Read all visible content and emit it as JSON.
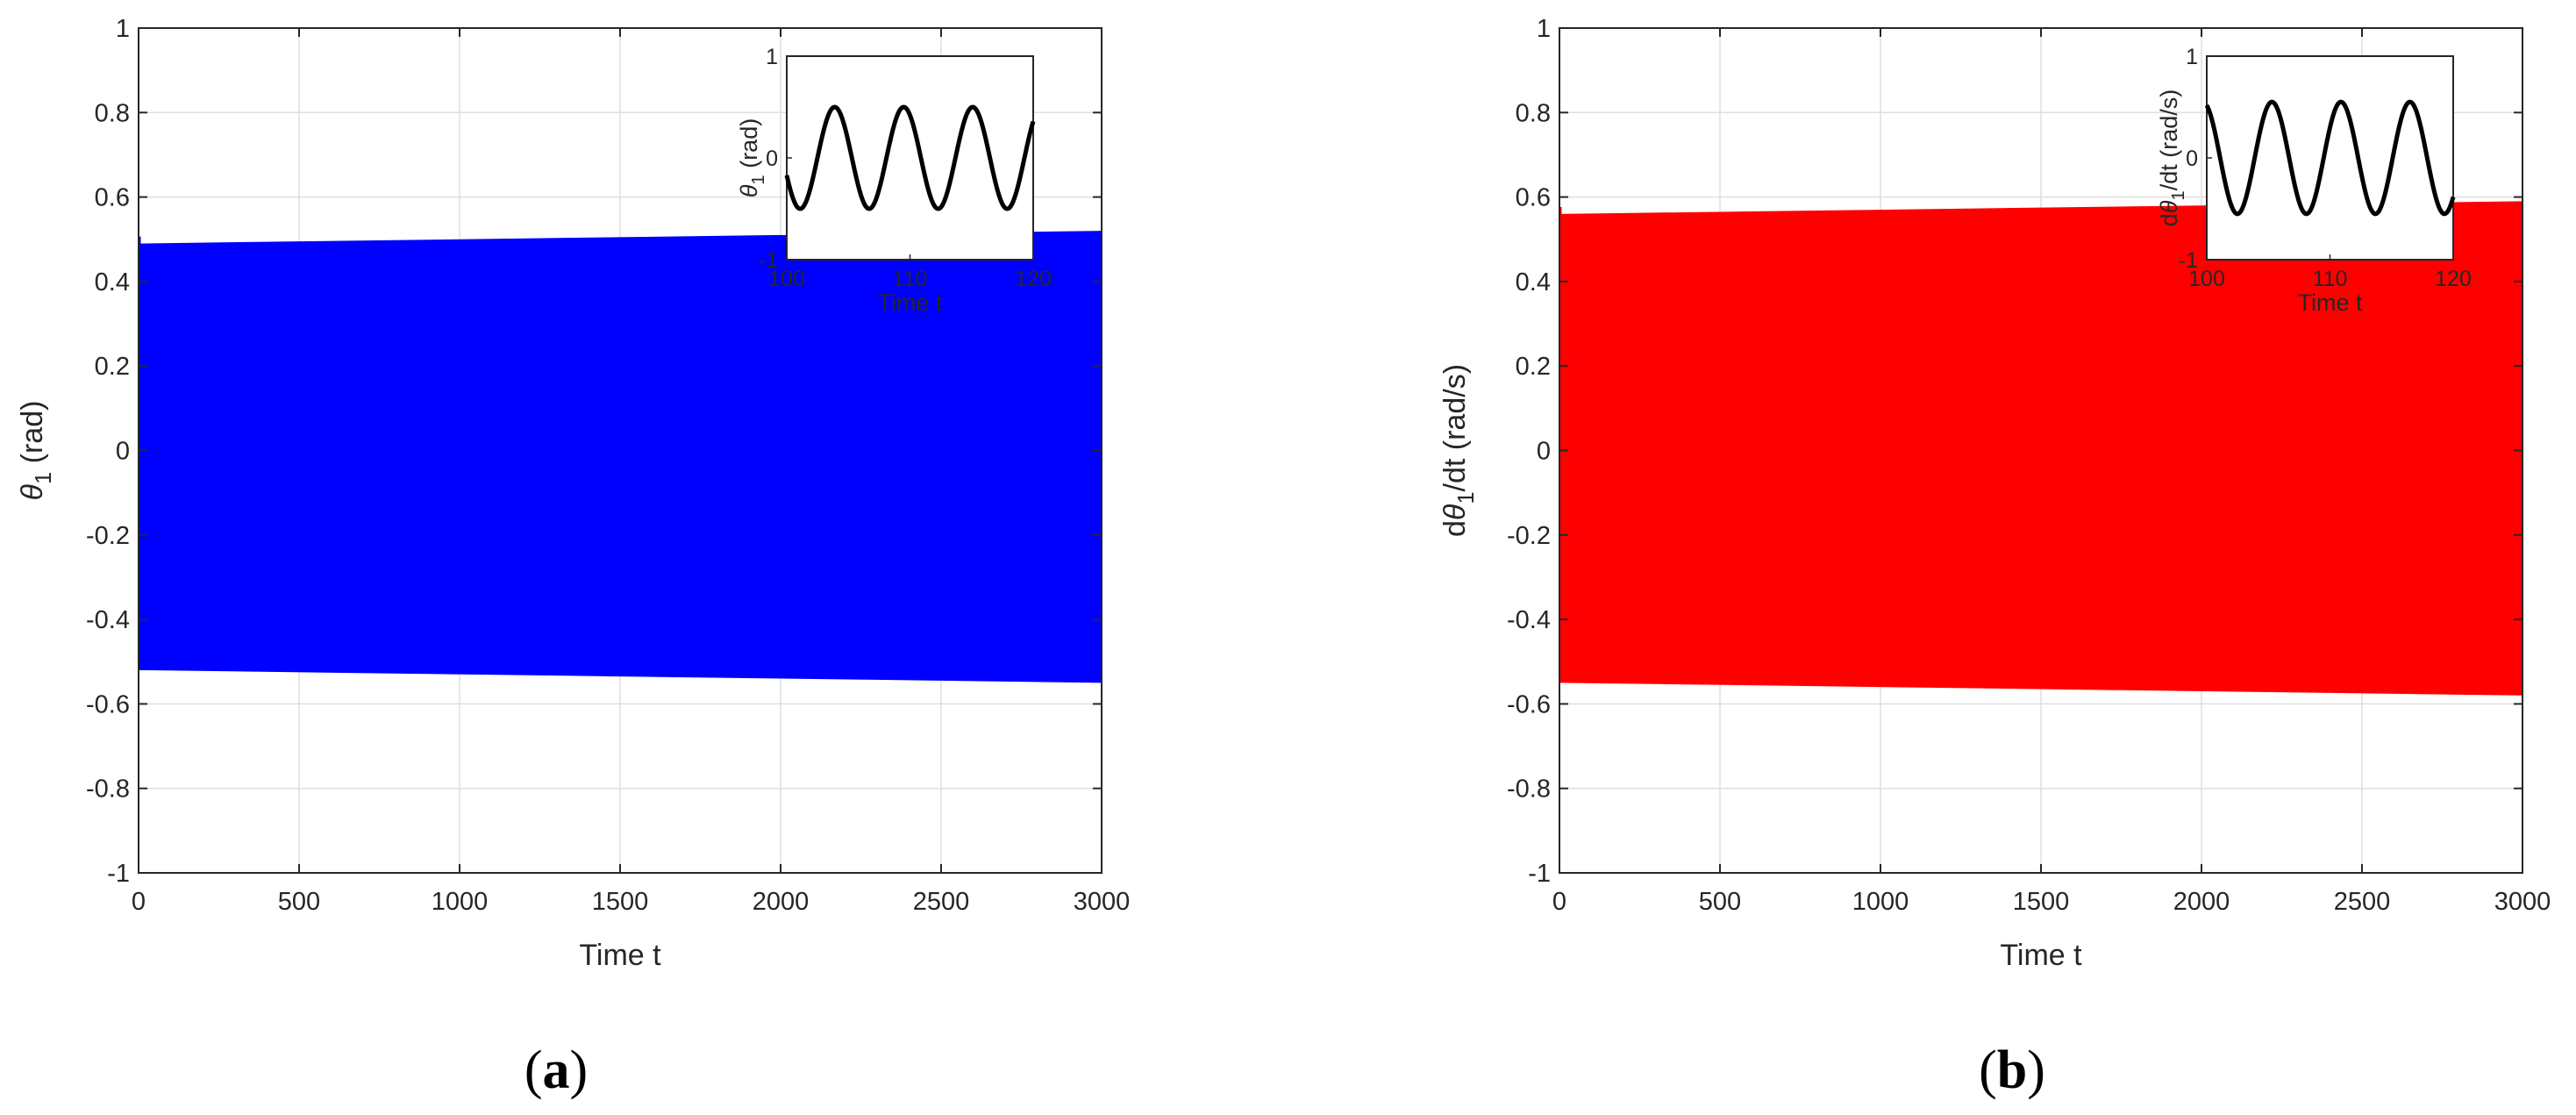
{
  "chart_data": [
    {
      "type": "area",
      "panel_label": "(a)",
      "xlabel": "Time t",
      "ylabel": "θ1 (rad)",
      "ylabel_parts": {
        "symbol": "θ",
        "sub": "1",
        "rest": " (rad)"
      },
      "xlim": [
        0,
        3000
      ],
      "ylim": [
        -1,
        1
      ],
      "xticks": [
        "0",
        "500",
        "1000",
        "1500",
        "2000",
        "2500",
        "3000"
      ],
      "yticks": [
        "-1",
        "-0.8",
        "-0.6",
        "-0.4",
        "-0.2",
        "0",
        "0.2",
        "0.4",
        "0.6",
        "0.8",
        "1"
      ],
      "grid": true,
      "color": "#0000ff",
      "description_series": {
        "x": [
          0,
          3000
        ],
        "upper_envelope": [
          0.49,
          0.52
        ],
        "lower_envelope": [
          -0.52,
          -0.55
        ]
      },
      "inset": {
        "type": "line",
        "xlabel": "Time t",
        "ylabel_parts": {
          "symbol": "θ",
          "sub": "1",
          "rest": " (rad)"
        },
        "xlim": [
          100,
          120
        ],
        "ylim": [
          -1,
          1
        ],
        "xticks": [
          "100",
          "110",
          "120"
        ],
        "yticks": [
          "-1",
          "0",
          "1"
        ],
        "color": "#000000",
        "amplitude": 0.5,
        "period": 5.6,
        "phase_deg": 200
      }
    },
    {
      "type": "area",
      "panel_label": "(b)",
      "xlabel": "Time t",
      "ylabel": "dθ1/dt (rad/s)",
      "ylabel_parts": {
        "prefix": "d",
        "symbol": "θ",
        "sub": "1",
        "rest": "/dt (rad/s)"
      },
      "xlim": [
        0,
        3000
      ],
      "ylim": [
        -1,
        1
      ],
      "xticks": [
        "0",
        "500",
        "1000",
        "1500",
        "2000",
        "2500",
        "3000"
      ],
      "yticks": [
        "-1",
        "-0.8",
        "-0.6",
        "-0.4",
        "-0.2",
        "0",
        "0.2",
        "0.4",
        "0.6",
        "0.8",
        "1"
      ],
      "grid": true,
      "color": "#ff0000",
      "description_series": {
        "x": [
          0,
          3000
        ],
        "upper_envelope": [
          0.56,
          0.59
        ],
        "lower_envelope": [
          -0.55,
          -0.58
        ]
      },
      "inset": {
        "type": "line",
        "xlabel": "Time t",
        "ylabel_parts": {
          "prefix": "d",
          "symbol": "θ",
          "sub": "1",
          "rest": "/dt (rad/s)"
        },
        "xlim": [
          100,
          120
        ],
        "ylim": [
          -1,
          1
        ],
        "xticks": [
          "100",
          "110",
          "120"
        ],
        "yticks": [
          "-1",
          "0",
          "1"
        ],
        "color": "#000000",
        "amplitude": 0.55,
        "period": 5.6,
        "phase_deg": 110
      }
    }
  ]
}
